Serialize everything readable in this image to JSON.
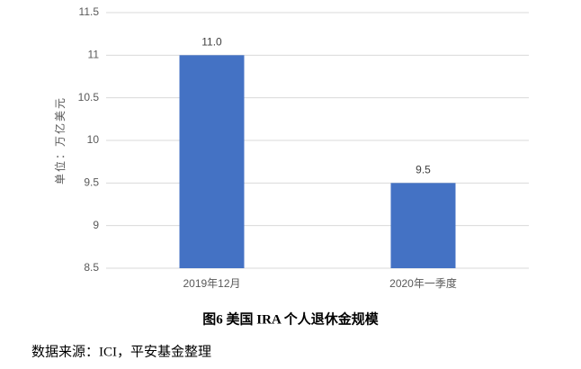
{
  "chart_data": {
    "type": "bar",
    "title": "图6 美国 IRA 个人退休金规模",
    "y_label": "单位：万亿美元",
    "source": "数据来源：ICI，平安基金整理",
    "categories": [
      "2019年12月",
      "2020年一季度"
    ],
    "values": [
      11.0,
      9.5
    ],
    "value_labels": [
      "11.0",
      "9.5"
    ],
    "color": "#4472c4",
    "ylim": [
      8.5,
      11.5
    ],
    "yticks": [
      8.5,
      9,
      9.5,
      10,
      10.5,
      11,
      11.5
    ],
    "grid": true
  }
}
